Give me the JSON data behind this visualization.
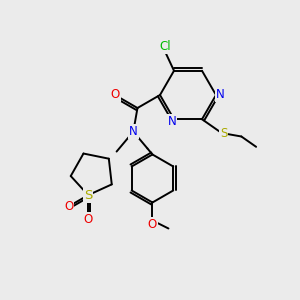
{
  "bg_color": "#ebebeb",
  "bond_color": "#000000",
  "atom_colors": {
    "N": "#0000ee",
    "O": "#ee0000",
    "S_thioether": "#aaaa00",
    "S_sulfone": "#aaaa00",
    "Cl": "#00bb00",
    "C": "#000000"
  },
  "lw": 1.4,
  "fs": 8.5
}
